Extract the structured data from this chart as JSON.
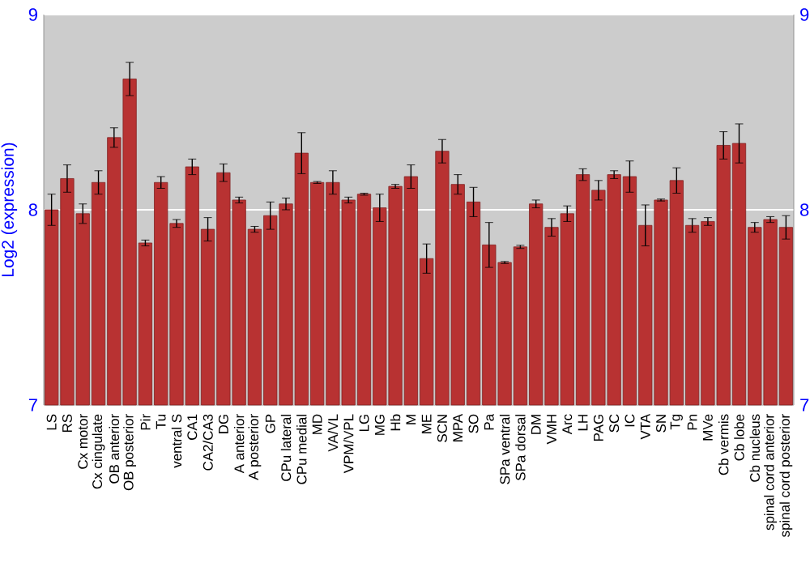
{
  "chart_data": {
    "type": "bar",
    "ylabel": "Log2 (expression)",
    "categories": [
      "LS",
      "RS",
      "Cx motor",
      "Cx cingulate",
      "OB anterior",
      "OB posterior",
      "Pir",
      "Tu",
      "ventral S",
      "CA1",
      "CA2/CA3",
      "DG",
      "A anterior",
      "A posterior",
      "GP",
      "CPu lateral",
      "CPu medial",
      "MD",
      "VA/VL",
      "VPM/VPL",
      "LG",
      "MG",
      "Hb",
      "M",
      "ME",
      "SCN",
      "MPA",
      "SO",
      "Pa",
      "SPa ventral",
      "SPa dorsal",
      "DM",
      "VMH",
      "Arc",
      "LH",
      "PAG",
      "SC",
      "IC",
      "VTA",
      "SN",
      "Tg",
      "Pn",
      "MVe",
      "Cb vermis",
      "Cb lobe",
      "Cb nucleus",
      "spinal cord anterior",
      "spinal cord posterior"
    ],
    "values": [
      8.0,
      8.16,
      7.98,
      8.14,
      8.37,
      8.67,
      7.83,
      8.14,
      7.93,
      8.22,
      7.9,
      8.19,
      8.05,
      7.9,
      7.97,
      8.03,
      8.29,
      8.14,
      8.14,
      8.05,
      8.08,
      8.01,
      8.12,
      8.17,
      7.75,
      8.3,
      8.13,
      8.04,
      7.82,
      7.73,
      7.81,
      8.03,
      7.91,
      7.98,
      8.18,
      8.1,
      8.18,
      8.17,
      7.92,
      8.05,
      8.15,
      7.92,
      7.94,
      8.33,
      8.34,
      7.91,
      7.95,
      7.91
    ],
    "errors": [
      0.08,
      0.07,
      0.05,
      0.06,
      0.05,
      0.085,
      0.015,
      0.03,
      0.02,
      0.04,
      0.06,
      0.045,
      0.015,
      0.015,
      0.07,
      0.03,
      0.105,
      0.005,
      0.06,
      0.015,
      0.005,
      0.07,
      0.01,
      0.06,
      0.075,
      0.06,
      0.05,
      0.075,
      0.115,
      0.005,
      0.008,
      0.02,
      0.045,
      0.04,
      0.03,
      0.05,
      0.02,
      0.08,
      0.105,
      0.005,
      0.065,
      0.035,
      0.02,
      0.07,
      0.1,
      0.025,
      0.015,
      0.06
    ],
    "color": "#b83232",
    "ylim": [
      7,
      9
    ],
    "yticks": [
      7,
      8,
      9
    ],
    "y2lim": [
      7,
      9
    ],
    "y2ticks": [
      7,
      8,
      9
    ],
    "grid": "y"
  }
}
